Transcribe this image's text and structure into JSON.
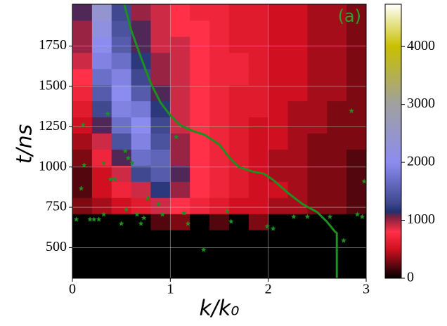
{
  "chart_data": {
    "type": "heatmap",
    "x_label": "k/k₀",
    "y_label": "t/ns",
    "annotation": "(a)",
    "annotation_color": "#2ca02c",
    "xlim": [
      0,
      3
    ],
    "xticks": [
      0,
      1,
      2,
      3
    ],
    "ylim": [
      310,
      2010
    ],
    "yticks": [
      500,
      750,
      1000,
      1250,
      1500,
      1750
    ],
    "clim": [
      0,
      4730
    ],
    "cticks": [
      0,
      1000,
      2000,
      3000,
      4000
    ],
    "grid": true,
    "colormap": [
      {
        "value": 0,
        "color": "#000000"
      },
      {
        "value": 500,
        "color": "#d01020"
      },
      {
        "value": 800,
        "color": "#ff3048"
      },
      {
        "value": 1050,
        "color": "#802040"
      },
      {
        "value": 1150,
        "color": "#203070"
      },
      {
        "value": 1300,
        "color": "#404890"
      },
      {
        "value": 2000,
        "color": "#8c8cf0"
      },
      {
        "value": 3000,
        "color": "#a0a0a0"
      },
      {
        "value": 4000,
        "color": "#c8c000"
      },
      {
        "value": 4730,
        "color": "#ffffff"
      }
    ],
    "x_bins": [
      0,
      0.2,
      0.4,
      0.6,
      0.8,
      1.0,
      1.2,
      1.4,
      1.6,
      1.8,
      2.0,
      2.2,
      2.4,
      2.6,
      2.8,
      3.0
    ],
    "y_bins": [
      310,
      410,
      510,
      610,
      710,
      810,
      910,
      1010,
      1110,
      1210,
      1310,
      1410,
      1510,
      1610,
      1710,
      1810,
      1910,
      2010
    ],
    "z": [
      [
        0,
        0,
        0,
        0,
        0,
        0,
        0,
        0,
        0,
        0,
        0,
        0,
        0,
        0,
        0
      ],
      [
        0,
        0,
        0,
        0,
        0,
        0,
        0,
        0,
        0,
        0,
        0,
        0,
        0,
        0,
        0
      ],
      [
        0,
        0,
        0,
        0,
        0,
        0,
        0,
        0,
        0,
        0,
        0,
        0,
        0,
        0,
        0
      ],
      [
        0,
        0,
        0,
        0,
        200,
        300,
        0,
        200,
        0,
        300,
        0,
        0,
        0,
        0,
        0
      ],
      [
        300,
        400,
        500,
        600,
        900,
        800,
        700,
        600,
        500,
        500,
        400,
        400,
        300,
        300,
        200
      ],
      [
        200,
        500,
        700,
        900,
        1200,
        1000,
        800,
        700,
        600,
        500,
        500,
        400,
        300,
        300,
        200
      ],
      [
        200,
        500,
        900,
        1300,
        1500,
        1100,
        800,
        700,
        600,
        500,
        400,
        400,
        300,
        300,
        200
      ],
      [
        300,
        700,
        1100,
        1700,
        1600,
        1000,
        800,
        700,
        600,
        500,
        400,
        400,
        300,
        300,
        200
      ],
      [
        400,
        900,
        1400,
        1900,
        1400,
        1000,
        800,
        700,
        600,
        500,
        500,
        400,
        300,
        300,
        300
      ],
      [
        500,
        1100,
        1700,
        2000,
        1300,
        900,
        800,
        700,
        600,
        500,
        500,
        400,
        400,
        300,
        300
      ],
      [
        600,
        1300,
        1900,
        1800,
        1200,
        900,
        800,
        700,
        600,
        600,
        500,
        400,
        400,
        300,
        300
      ],
      [
        700,
        1500,
        2000,
        1500,
        1100,
        900,
        800,
        700,
        600,
        600,
        500,
        500,
        400,
        400,
        300
      ],
      [
        800,
        1700,
        1900,
        1300,
        1000,
        900,
        800,
        700,
        700,
        600,
        500,
        500,
        400,
        400,
        300
      ],
      [
        900,
        1900,
        1700,
        1200,
        1000,
        900,
        800,
        700,
        700,
        600,
        500,
        500,
        400,
        400,
        300
      ],
      [
        1000,
        2000,
        1500,
        1100,
        900,
        900,
        800,
        700,
        600,
        600,
        500,
        500,
        400,
        400,
        300
      ],
      [
        1000,
        2200,
        1400,
        1100,
        900,
        800,
        800,
        700,
        600,
        600,
        500,
        500,
        400,
        400,
        300
      ],
      [
        1100,
        2400,
        1300,
        1000,
        900,
        800,
        700,
        700,
        600,
        600,
        500,
        500,
        400,
        400,
        300
      ]
    ],
    "line": {
      "color": "#1f8f1f",
      "x": [
        0.53,
        0.6,
        0.7,
        0.8,
        0.9,
        1.0,
        1.1,
        1.2,
        1.35,
        1.5,
        1.6,
        1.7,
        1.85,
        1.95,
        2.05,
        2.2,
        2.35,
        2.5,
        2.6,
        2.68,
        2.7,
        2.7
      ],
      "y": [
        2010,
        1850,
        1680,
        1520,
        1400,
        1320,
        1260,
        1230,
        1200,
        1140,
        1060,
        1000,
        970,
        960,
        920,
        840,
        770,
        720,
        660,
        600,
        590,
        310
      ]
    },
    "stars": {
      "color": "#1f8f1f",
      "x": [
        0.04,
        0.18,
        0.22,
        0.27,
        0.32,
        0.5,
        0.66,
        0.7,
        0.73,
        0.55,
        0.77,
        0.88,
        0.92,
        1.14,
        1.18,
        1.34,
        1.58,
        1.62,
        1.99,
        2.05,
        2.26,
        2.4,
        2.63,
        2.77,
        2.91,
        2.96,
        2.98,
        2.85,
        0.09,
        0.12,
        0.39,
        0.43,
        0.32,
        0.61,
        0.36,
        0.11,
        1.06,
        0.54,
        0.57
      ],
      "y": [
        675,
        675,
        675,
        675,
        706,
        649,
        706,
        649,
        684,
        736,
        806,
        771,
        706,
        714,
        649,
        487,
        727,
        662,
        631,
        618,
        692,
        692,
        692,
        544,
        706,
        692,
        911,
        1348,
        867,
        1011,
        924,
        924,
        1025,
        1025,
        1330,
        1261,
        1186,
        1099,
        1055
      ]
    }
  }
}
